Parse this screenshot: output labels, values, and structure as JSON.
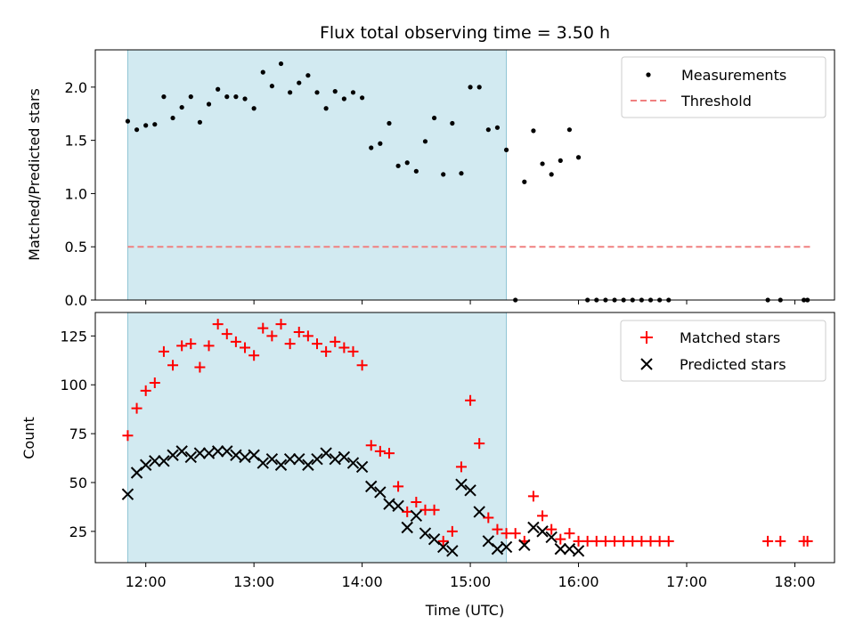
{
  "colors": {
    "shade": "#add8e6",
    "measurement": "#000000",
    "threshold": "#f08080",
    "matched": "#ff0000",
    "predicted": "#000000"
  },
  "chart_data": [
    {
      "type": "scatter",
      "title": "Flux total observing time = 3.50 h",
      "xlabel": "",
      "ylabel": "Matched/Predicted stars",
      "xlim": [
        "11:32",
        "18:22"
      ],
      "ylim": [
        0,
        2.35
      ],
      "yticks": [
        0.0,
        0.5,
        1.0,
        1.5,
        2.0
      ],
      "ytick_labels": [
        "0.0",
        "0.5",
        "1.0",
        "1.5",
        "2.0"
      ],
      "shaded_interval": [
        "11:50",
        "15:20"
      ],
      "legend_position": "upper right",
      "series": [
        {
          "name": "Measurements",
          "marker": "dot",
          "points": [
            [
              "11:50",
              1.68
            ],
            [
              "11:55",
              1.6
            ],
            [
              "12:00",
              1.64
            ],
            [
              "12:05",
              1.65
            ],
            [
              "12:10",
              1.91
            ],
            [
              "12:15",
              1.71
            ],
            [
              "12:20",
              1.81
            ],
            [
              "12:25",
              1.91
            ],
            [
              "12:30",
              1.67
            ],
            [
              "12:35",
              1.84
            ],
            [
              "12:40",
              1.98
            ],
            [
              "12:45",
              1.91
            ],
            [
              "12:50",
              1.91
            ],
            [
              "12:55",
              1.89
            ],
            [
              "13:00",
              1.8
            ],
            [
              "13:05",
              2.14
            ],
            [
              "13:10",
              2.01
            ],
            [
              "13:15",
              2.22
            ],
            [
              "13:20",
              1.95
            ],
            [
              "13:25",
              2.04
            ],
            [
              "13:30",
              2.11
            ],
            [
              "13:35",
              1.95
            ],
            [
              "13:40",
              1.8
            ],
            [
              "13:45",
              1.96
            ],
            [
              "13:50",
              1.89
            ],
            [
              "13:55",
              1.95
            ],
            [
              "14:00",
              1.9
            ],
            [
              "14:05",
              1.43
            ],
            [
              "14:10",
              1.47
            ],
            [
              "14:15",
              1.66
            ],
            [
              "14:20",
              1.26
            ],
            [
              "14:25",
              1.29
            ],
            [
              "14:30",
              1.21
            ],
            [
              "14:35",
              1.49
            ],
            [
              "14:40",
              1.71
            ],
            [
              "14:45",
              1.18
            ],
            [
              "14:50",
              1.66
            ],
            [
              "14:55",
              1.19
            ],
            [
              "15:00",
              2.0
            ],
            [
              "15:05",
              2.0
            ],
            [
              "15:10",
              1.6
            ],
            [
              "15:15",
              1.62
            ],
            [
              "15:20",
              1.41
            ],
            [
              "15:25",
              0.0
            ],
            [
              "15:30",
              1.11
            ],
            [
              "15:35",
              1.59
            ],
            [
              "15:40",
              1.28
            ],
            [
              "15:45",
              1.18
            ],
            [
              "15:50",
              1.31
            ],
            [
              "15:55",
              1.6
            ],
            [
              "16:00",
              1.34
            ],
            [
              "16:05",
              0.0
            ],
            [
              "16:10",
              0.0
            ],
            [
              "16:15",
              0.0
            ],
            [
              "16:20",
              0.0
            ],
            [
              "16:25",
              0.0
            ],
            [
              "16:30",
              0.0
            ],
            [
              "16:35",
              0.0
            ],
            [
              "16:40",
              0.0
            ],
            [
              "16:45",
              0.0
            ],
            [
              "16:50",
              0.0
            ],
            [
              "17:45",
              0.0
            ],
            [
              "17:52",
              0.0
            ],
            [
              "18:05",
              0.0
            ],
            [
              "18:07",
              0.0
            ]
          ]
        },
        {
          "name": "Threshold",
          "marker": "dashed-line",
          "points": [
            [
              "11:50",
              0.5
            ],
            [
              "18:10",
              0.5
            ]
          ]
        }
      ]
    },
    {
      "type": "scatter",
      "title": "",
      "xlabel": "Time (UTC)",
      "ylabel": "Count",
      "xlim": [
        "11:32",
        "18:22"
      ],
      "ylim": [
        9,
        137
      ],
      "yticks": [
        25,
        50,
        75,
        100,
        125
      ],
      "ytick_labels": [
        "25",
        "50",
        "75",
        "100",
        "125"
      ],
      "xticks": [
        "12:00",
        "13:00",
        "14:00",
        "15:00",
        "16:00",
        "17:00",
        "18:00"
      ],
      "xtick_labels": [
        "12:00",
        "13:00",
        "14:00",
        "15:00",
        "16:00",
        "17:00",
        "18:00"
      ],
      "shaded_interval": [
        "11:50",
        "15:20"
      ],
      "legend_position": "upper right",
      "series": [
        {
          "name": "Matched stars",
          "marker": "plus",
          "points": [
            [
              "11:50",
              74
            ],
            [
              "11:55",
              88
            ],
            [
              "12:00",
              97
            ],
            [
              "12:05",
              101
            ],
            [
              "12:10",
              117
            ],
            [
              "12:15",
              110
            ],
            [
              "12:20",
              120
            ],
            [
              "12:25",
              121
            ],
            [
              "12:30",
              109
            ],
            [
              "12:35",
              120
            ],
            [
              "12:40",
              131
            ],
            [
              "12:45",
              126
            ],
            [
              "12:50",
              122
            ],
            [
              "12:55",
              119
            ],
            [
              "13:00",
              115
            ],
            [
              "13:05",
              129
            ],
            [
              "13:10",
              125
            ],
            [
              "13:15",
              131
            ],
            [
              "13:20",
              121
            ],
            [
              "13:25",
              127
            ],
            [
              "13:30",
              125
            ],
            [
              "13:35",
              121
            ],
            [
              "13:40",
              117
            ],
            [
              "13:45",
              122
            ],
            [
              "13:50",
              119
            ],
            [
              "13:55",
              117
            ],
            [
              "14:00",
              110
            ],
            [
              "14:05",
              69
            ],
            [
              "14:10",
              66
            ],
            [
              "14:15",
              65
            ],
            [
              "14:20",
              48
            ],
            [
              "14:25",
              35
            ],
            [
              "14:30",
              40
            ],
            [
              "14:35",
              36
            ],
            [
              "14:40",
              36
            ],
            [
              "14:45",
              20
            ],
            [
              "14:50",
              25
            ],
            [
              "14:55",
              58
            ],
            [
              "15:00",
              92
            ],
            [
              "15:05",
              70
            ],
            [
              "15:10",
              32
            ],
            [
              "15:15",
              26
            ],
            [
              "15:20",
              24
            ],
            [
              "15:25",
              24
            ],
            [
              "15:30",
              20
            ],
            [
              "15:35",
              43
            ],
            [
              "15:40",
              33
            ],
            [
              "15:45",
              26
            ],
            [
              "15:50",
              21
            ],
            [
              "15:55",
              24
            ],
            [
              "16:00",
              20
            ],
            [
              "16:05",
              20
            ],
            [
              "16:10",
              20
            ],
            [
              "16:15",
              20
            ],
            [
              "16:20",
              20
            ],
            [
              "16:25",
              20
            ],
            [
              "16:30",
              20
            ],
            [
              "16:35",
              20
            ],
            [
              "16:40",
              20
            ],
            [
              "16:45",
              20
            ],
            [
              "16:50",
              20
            ],
            [
              "17:45",
              20
            ],
            [
              "17:52",
              20
            ],
            [
              "18:05",
              20
            ],
            [
              "18:07",
              20
            ]
          ]
        },
        {
          "name": "Predicted stars",
          "marker": "x",
          "points": [
            [
              "11:50",
              44
            ],
            [
              "11:55",
              55
            ],
            [
              "12:00",
              59
            ],
            [
              "12:05",
              61
            ],
            [
              "12:10",
              61
            ],
            [
              "12:15",
              64
            ],
            [
              "12:20",
              66
            ],
            [
              "12:25",
              63
            ],
            [
              "12:30",
              65
            ],
            [
              "12:35",
              65
            ],
            [
              "12:40",
              66
            ],
            [
              "12:45",
              66
            ],
            [
              "12:50",
              64
            ],
            [
              "12:55",
              63
            ],
            [
              "13:00",
              64
            ],
            [
              "13:05",
              60
            ],
            [
              "13:10",
              62
            ],
            [
              "13:15",
              59
            ],
            [
              "13:20",
              62
            ],
            [
              "13:25",
              62
            ],
            [
              "13:30",
              59
            ],
            [
              "13:35",
              62
            ],
            [
              "13:40",
              65
            ],
            [
              "13:45",
              62
            ],
            [
              "13:50",
              63
            ],
            [
              "13:55",
              60
            ],
            [
              "14:00",
              58
            ],
            [
              "14:05",
              48
            ],
            [
              "14:10",
              45
            ],
            [
              "14:15",
              39
            ],
            [
              "14:20",
              38
            ],
            [
              "14:25",
              27
            ],
            [
              "14:30",
              33
            ],
            [
              "14:35",
              24
            ],
            [
              "14:40",
              21
            ],
            [
              "14:45",
              17
            ],
            [
              "14:50",
              15
            ],
            [
              "14:55",
              49
            ],
            [
              "15:00",
              46
            ],
            [
              "15:05",
              35
            ],
            [
              "15:10",
              20
            ],
            [
              "15:15",
              16
            ],
            [
              "15:20",
              17
            ],
            [
              "15:30",
              18
            ],
            [
              "15:35",
              27
            ],
            [
              "15:40",
              25
            ],
            [
              "15:45",
              22
            ],
            [
              "15:50",
              16
            ],
            [
              "15:55",
              16
            ],
            [
              "16:00",
              15
            ]
          ]
        }
      ]
    }
  ]
}
